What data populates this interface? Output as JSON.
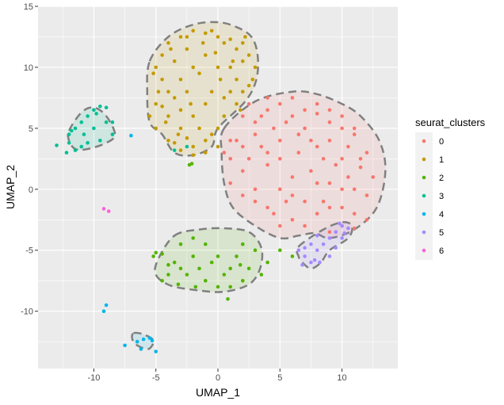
{
  "chart_data": {
    "type": "scatter",
    "xlabel": "UMAP_1",
    "ylabel": "UMAP_2",
    "xlim": [
      -14.5,
      14.5
    ],
    "ylim": [
      -14.7,
      15
    ],
    "x_ticks": [
      -10,
      -5,
      0,
      5,
      10
    ],
    "y_ticks": [
      -10,
      -5,
      0,
      5,
      10,
      15
    ],
    "grid": true,
    "legend": {
      "title": "seurat_clusters",
      "position": "right",
      "entries": [
        "0",
        "1",
        "2",
        "3",
        "4",
        "5",
        "6"
      ]
    },
    "colors": {
      "0": "#F8766D",
      "1": "#C49A00",
      "2": "#53B400",
      "3": "#00C094",
      "4": "#00B6EB",
      "5": "#A58AFF",
      "6": "#FB61D7",
      "hull_outline": "#808080",
      "panel_background": "#EBEBEB",
      "gridline": "#FFFFFF"
    },
    "hulls": [
      {
        "cluster": "0",
        "points": [
          [
            0.5,
            5
          ],
          [
            3,
            7.2
          ],
          [
            6,
            8
          ],
          [
            8,
            7.8
          ],
          [
            10,
            7
          ],
          [
            11.5,
            6
          ],
          [
            13,
            4
          ],
          [
            13.5,
            1.5
          ],
          [
            12.8,
            -1.5
          ],
          [
            11,
            -3.3
          ],
          [
            9,
            -4
          ],
          [
            7.8,
            -3.6
          ],
          [
            6.5,
            -3.8
          ],
          [
            5,
            -4
          ],
          [
            3,
            -3
          ],
          [
            1.2,
            -1.5
          ],
          [
            0.5,
            0.5
          ],
          [
            0.3,
            3
          ]
        ]
      },
      {
        "cluster": "1",
        "points": [
          [
            -5.5,
            10.5
          ],
          [
            -4,
            12.5
          ],
          [
            -2,
            13.5
          ],
          [
            0,
            13.7
          ],
          [
            1.5,
            13.3
          ],
          [
            2.7,
            12.5
          ],
          [
            3.2,
            11
          ],
          [
            3.1,
            9
          ],
          [
            2.2,
            7.2
          ],
          [
            0,
            5
          ],
          [
            -0.5,
            3.5
          ],
          [
            -2,
            2.8
          ],
          [
            -3.5,
            3
          ],
          [
            -4.5,
            4.5
          ],
          [
            -5.5,
            5.5
          ],
          [
            -5.7,
            8
          ]
        ]
      },
      {
        "cluster": "2",
        "points": [
          [
            -3.5,
            -3.8
          ],
          [
            -1.5,
            -3.3
          ],
          [
            0.5,
            -3.2
          ],
          [
            2.5,
            -3.5
          ],
          [
            3.5,
            -4.8
          ],
          [
            3.4,
            -6.5
          ],
          [
            2.5,
            -7.8
          ],
          [
            0.5,
            -8.4
          ],
          [
            -1.5,
            -8.3
          ],
          [
            -3.8,
            -7.9
          ],
          [
            -5,
            -7
          ],
          [
            -4.8,
            -5.7
          ]
        ]
      },
      {
        "cluster": "3",
        "points": [
          [
            -12,
            4.8
          ],
          [
            -11,
            6.3
          ],
          [
            -10,
            6.7
          ],
          [
            -9,
            6
          ],
          [
            -8.3,
            4.5
          ],
          [
            -9,
            3.8
          ],
          [
            -10.5,
            3.3
          ],
          [
            -11.5,
            3.3
          ],
          [
            -12,
            4
          ]
        ]
      },
      {
        "cluster": "4",
        "points": [
          [
            -6.8,
            -11.8
          ],
          [
            -6,
            -11.9
          ],
          [
            -5.2,
            -12.4
          ],
          [
            -5.6,
            -13.1
          ],
          [
            -6.5,
            -12.8
          ],
          [
            -6.9,
            -12.3
          ]
        ]
      },
      {
        "cluster": "5",
        "points": [
          [
            6.5,
            -4.7
          ],
          [
            8.5,
            -3.3
          ],
          [
            10,
            -2.7
          ],
          [
            10.8,
            -3
          ],
          [
            10.5,
            -4
          ],
          [
            9,
            -5
          ],
          [
            8.3,
            -6
          ],
          [
            7.5,
            -6.5
          ],
          [
            6.8,
            -6
          ],
          [
            6.5,
            -5.5
          ]
        ]
      }
    ],
    "series": [
      {
        "name": "0",
        "points": [
          [
            2,
            6
          ],
          [
            3,
            5.5
          ],
          [
            4,
            6.5
          ],
          [
            5,
            7
          ],
          [
            6,
            6
          ],
          [
            7,
            5
          ],
          [
            8,
            6.2
          ],
          [
            9,
            5.5
          ],
          [
            10,
            5
          ],
          [
            11,
            4.5
          ],
          [
            12,
            3
          ],
          [
            12.5,
            1
          ],
          [
            12,
            -0.5
          ],
          [
            11,
            -2
          ],
          [
            10,
            -3
          ],
          [
            9,
            -3.5
          ],
          [
            8,
            -2
          ],
          [
            7,
            -1
          ],
          [
            6,
            -2.5
          ],
          [
            5,
            -3
          ],
          [
            4,
            -1.5
          ],
          [
            3,
            0
          ],
          [
            2,
            1.5
          ],
          [
            1,
            2.5
          ],
          [
            1.5,
            4
          ],
          [
            3.5,
            3.5
          ],
          [
            5,
            4
          ],
          [
            6.5,
            3
          ],
          [
            8,
            3.5
          ],
          [
            9.5,
            2
          ],
          [
            10.5,
            1
          ],
          [
            11,
            0
          ],
          [
            7.5,
            1.5
          ],
          [
            6,
            1
          ],
          [
            5,
            0
          ],
          [
            4,
            2
          ],
          [
            9,
            0.5
          ],
          [
            8.5,
            -1
          ],
          [
            10,
            -1.5
          ],
          [
            11.5,
            1.8
          ],
          [
            2.5,
            2.5
          ],
          [
            3.5,
            6
          ],
          [
            4.5,
            5
          ],
          [
            6.5,
            4.5
          ],
          [
            7.5,
            4
          ],
          [
            9,
            4
          ],
          [
            10.5,
            3.5
          ],
          [
            11.5,
            2.5
          ],
          [
            10,
            0
          ],
          [
            9,
            -1.5
          ],
          [
            7,
            -3
          ],
          [
            5.5,
            -1
          ],
          [
            4.5,
            -2
          ],
          [
            3,
            -1
          ],
          [
            2,
            -0.5
          ],
          [
            1,
            0.5
          ],
          [
            3,
            4.5
          ],
          [
            5,
            2.5
          ],
          [
            6,
            -0.5
          ],
          [
            8,
            0.5
          ],
          [
            12,
            -2.5
          ],
          [
            11,
            -3.2
          ],
          [
            7,
            6.5
          ],
          [
            8,
            7
          ],
          [
            6,
            7.5
          ],
          [
            9,
            6.5
          ],
          [
            10,
            6
          ],
          [
            4,
            7.5
          ],
          [
            2.5,
            7
          ],
          [
            1,
            4
          ],
          [
            0.5,
            3
          ],
          [
            2,
            3.5
          ],
          [
            4,
            3
          ],
          [
            5.5,
            5.5
          ],
          [
            8.5,
            2.5
          ],
          [
            10,
            2.5
          ],
          [
            11,
            5
          ]
        ]
      },
      {
        "cluster_note": "",
        "name": "1",
        "points": [
          [
            -5,
            10
          ],
          [
            -4.5,
            11
          ],
          [
            -4,
            12
          ],
          [
            -3,
            12.5
          ],
          [
            -2,
            13
          ],
          [
            -1,
            12.8
          ],
          [
            0,
            12.5
          ],
          [
            1,
            12.3
          ],
          [
            2,
            12
          ],
          [
            2.5,
            11
          ],
          [
            3,
            10
          ],
          [
            2.8,
            9
          ],
          [
            2,
            8
          ],
          [
            1.5,
            7
          ],
          [
            0.5,
            6
          ],
          [
            0,
            5
          ],
          [
            -1,
            4
          ],
          [
            -2,
            3.5
          ],
          [
            -3,
            3.2
          ],
          [
            -4,
            4
          ],
          [
            -5,
            5
          ],
          [
            -5.5,
            6
          ],
          [
            -5,
            7
          ],
          [
            -4,
            8
          ],
          [
            -3,
            9
          ],
          [
            -2,
            10
          ],
          [
            -1,
            11
          ],
          [
            0,
            10
          ],
          [
            1,
            10
          ],
          [
            1.5,
            9
          ],
          [
            1,
            8
          ],
          [
            -1,
            7
          ],
          [
            -2,
            6
          ],
          [
            -3,
            5
          ],
          [
            -4,
            6
          ],
          [
            -4.5,
            9
          ],
          [
            -3.5,
            10.5
          ],
          [
            -2.5,
            11.5
          ],
          [
            -1.5,
            9.5
          ],
          [
            -0.5,
            8
          ],
          [
            0.5,
            7.5
          ],
          [
            2,
            10.5
          ],
          [
            -3.5,
            7.5
          ],
          [
            -2.5,
            8
          ],
          [
            -1.5,
            5
          ],
          [
            -0.5,
            4.5
          ],
          [
            -2.5,
            4.2
          ],
          [
            -3.5,
            3.8
          ],
          [
            -4.2,
            5.5
          ],
          [
            -1,
            3
          ],
          [
            0,
            3.5
          ],
          [
            -2,
            2.8
          ],
          [
            1.5,
            11.5
          ],
          [
            0.5,
            12
          ],
          [
            -0.5,
            13
          ],
          [
            -2.5,
            12.5
          ],
          [
            -3.8,
            11.5
          ],
          [
            -4.8,
            8
          ],
          [
            -5.2,
            9.5
          ],
          [
            2.5,
            8.5
          ],
          [
            1.8,
            6.5
          ],
          [
            -3,
            6.5
          ],
          [
            -0.2,
            11.2
          ],
          [
            1.2,
            10.5
          ],
          [
            -1.2,
            12
          ],
          [
            -2.2,
            7
          ],
          [
            -4.5,
            6.8
          ],
          [
            0.2,
            9
          ],
          [
            2.2,
            12.5
          ],
          [
            -3.2,
            4.5
          ]
        ]
      },
      {
        "name": "2",
        "points": [
          [
            -5,
            -5.2
          ],
          [
            -5.2,
            -5.5
          ],
          [
            -4.5,
            -5.3
          ],
          [
            -3.5,
            -6
          ],
          [
            -3,
            -6.5
          ],
          [
            -2.5,
            -7
          ],
          [
            -2,
            -5.5
          ],
          [
            -1.5,
            -6.5
          ],
          [
            -1,
            -7.5
          ],
          [
            -0.5,
            -6
          ],
          [
            0,
            -5.5
          ],
          [
            0.5,
            -7
          ],
          [
            1,
            -6.5
          ],
          [
            1.5,
            -5.5
          ],
          [
            2,
            -7.5
          ],
          [
            2.5,
            -6.5
          ],
          [
            3,
            -5
          ],
          [
            3.5,
            -7
          ],
          [
            -4,
            -7
          ],
          [
            -4.5,
            -7.5
          ],
          [
            -3,
            -4.5
          ],
          [
            -2,
            -4
          ],
          [
            -1,
            -4.5
          ],
          [
            0,
            -8
          ],
          [
            1,
            -8
          ],
          [
            0.8,
            -9
          ],
          [
            2,
            -4.5
          ],
          [
            4,
            -6
          ],
          [
            5,
            -5
          ],
          [
            6,
            -5.5
          ],
          [
            -2.3,
            2
          ],
          [
            -2.1,
            2.1
          ],
          [
            -4,
            -6.2
          ],
          [
            -3.2,
            -7.8
          ],
          [
            -1.8,
            -8
          ],
          [
            1.8,
            -6.2
          ]
        ]
      },
      {
        "name": "3",
        "points": [
          [
            -12,
            4.5
          ],
          [
            -11.5,
            5
          ],
          [
            -11,
            5.5
          ],
          [
            -10.5,
            6
          ],
          [
            -10,
            6.5
          ],
          [
            -9.5,
            6.8
          ],
          [
            -9,
            5.5
          ],
          [
            -8.5,
            4.5
          ],
          [
            -9.5,
            4
          ],
          [
            -10.5,
            3.8
          ],
          [
            -11,
            3.5
          ],
          [
            -11.5,
            3.2
          ],
          [
            -12,
            3.8
          ],
          [
            -9,
            6.7
          ],
          [
            -13,
            3.6
          ],
          [
            -12.2,
            3
          ],
          [
            -10,
            5
          ],
          [
            -10.8,
            4.5
          ],
          [
            -8.5,
            5.5
          ],
          [
            -9.8,
            6.2
          ],
          [
            -11.8,
            4.8
          ],
          [
            -2.5,
            3.5
          ],
          [
            -3.5,
            3.2
          ]
        ]
      },
      {
        "name": "4",
        "points": [
          [
            -9,
            -9.5
          ],
          [
            -9.2,
            -10
          ],
          [
            -7.5,
            -12.8
          ],
          [
            -6.5,
            -12.5
          ],
          [
            -6,
            -12.3
          ],
          [
            -5.5,
            -12.2
          ],
          [
            -5,
            -13.3
          ],
          [
            -6.2,
            -13.1
          ],
          [
            -7,
            4.4
          ],
          [
            -5.3,
            -12.4
          ]
        ]
      },
      {
        "name": "5",
        "points": [
          [
            6.5,
            -5
          ],
          [
            7,
            -5.5
          ],
          [
            7.5,
            -6
          ],
          [
            8,
            -5
          ],
          [
            8.5,
            -4.5
          ],
          [
            9,
            -4
          ],
          [
            9.5,
            -3.5
          ],
          [
            10,
            -3
          ],
          [
            10.5,
            -3.2
          ],
          [
            8,
            -3.8
          ],
          [
            7.5,
            -4.5
          ],
          [
            9,
            -5.5
          ],
          [
            9.5,
            -4.8
          ],
          [
            10,
            -4
          ],
          [
            8.2,
            -6
          ],
          [
            7,
            -4.8
          ],
          [
            9.8,
            -2.8
          ],
          [
            10.2,
            -3.6
          ],
          [
            7.8,
            -5.8
          ],
          [
            6.8,
            -6.2
          ]
        ]
      },
      {
        "name": "6",
        "points": [
          [
            -9.2,
            -1.6
          ],
          [
            -8.8,
            -1.8
          ]
        ]
      }
    ]
  }
}
